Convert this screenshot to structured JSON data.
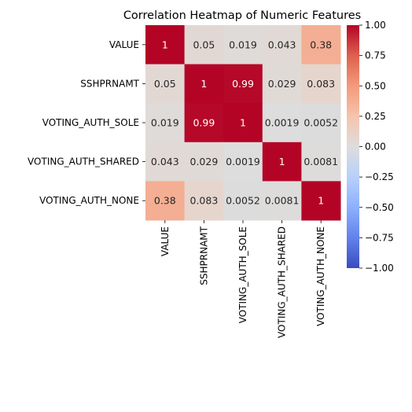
{
  "chart_data": {
    "type": "heatmap",
    "title": "Correlation Heatmap of Numeric Features",
    "x_labels": [
      "VALUE",
      "SSHPRNAMT",
      "VOTING_AUTH_SOLE",
      "VOTING_AUTH_SHARED",
      "VOTING_AUTH_NONE"
    ],
    "y_labels": [
      "VALUE",
      "SSHPRNAMT",
      "VOTING_AUTH_SOLE",
      "VOTING_AUTH_SHARED",
      "VOTING_AUTH_NONE"
    ],
    "values": [
      [
        1,
        0.05,
        0.019,
        0.043,
        0.38
      ],
      [
        0.05,
        1,
        0.99,
        0.029,
        0.083
      ],
      [
        0.019,
        0.99,
        1,
        0.0019,
        0.0052
      ],
      [
        0.043,
        0.029,
        0.0019,
        1,
        0.0081
      ],
      [
        0.38,
        0.083,
        0.0052,
        0.0081,
        1
      ]
    ],
    "annotations": [
      [
        "1",
        "0.05",
        "0.019",
        "0.043",
        "0.38"
      ],
      [
        "0.05",
        "1",
        "0.99",
        "0.029",
        "0.083"
      ],
      [
        "0.019",
        "0.99",
        "1",
        "0.0019",
        "0.0052"
      ],
      [
        "0.043",
        "0.029",
        "0.0019",
        "1",
        "0.0081"
      ],
      [
        "0.38",
        "0.083",
        "0.0052",
        "0.0081",
        "1"
      ]
    ],
    "colormap": "coolwarm",
    "vmin": -1,
    "vmax": 1,
    "colorbar_ticks": [
      1,
      0.75,
      0.5,
      0.25,
      0,
      -0.25,
      -0.5,
      -0.75,
      -1
    ],
    "colorbar_tick_labels": [
      "1.00",
      "0.75",
      "0.50",
      "0.25",
      "0.00",
      "−0.25",
      "−0.50",
      "−0.75",
      "−1.00"
    ]
  }
}
